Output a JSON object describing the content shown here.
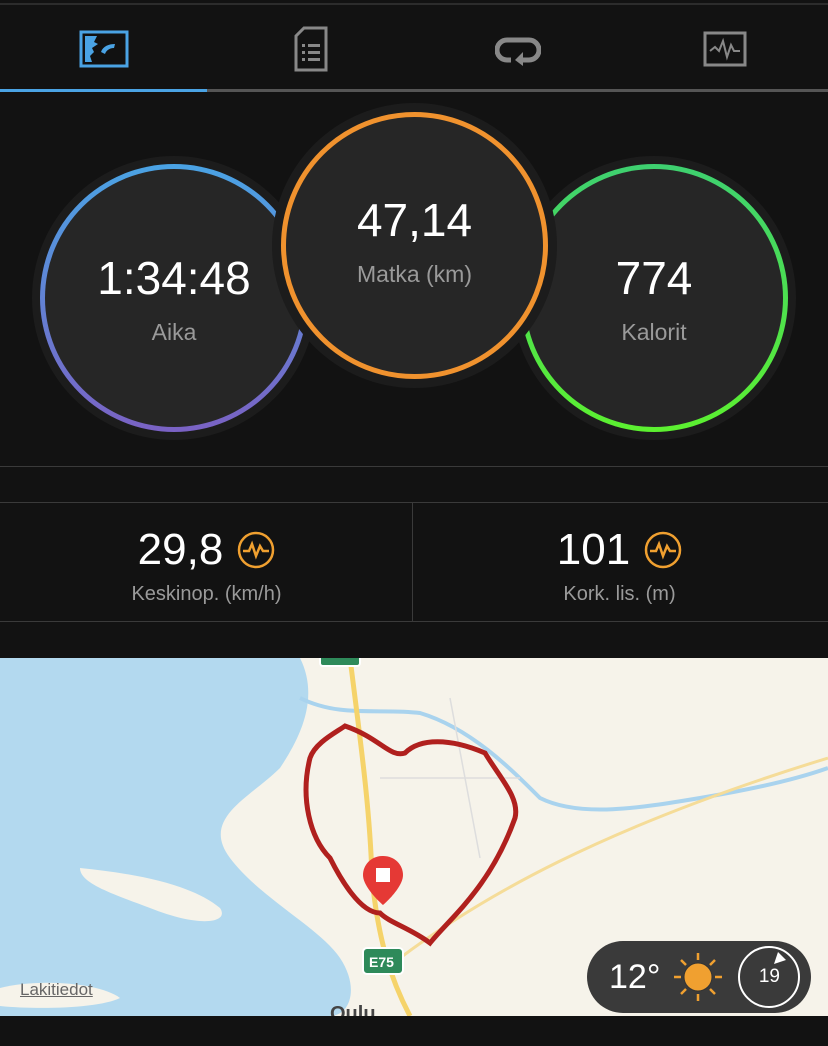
{
  "tabs": [
    {
      "icon": "overview-icon",
      "active": true
    },
    {
      "icon": "details-icon"
    },
    {
      "icon": "laps-icon"
    },
    {
      "icon": "charts-icon"
    }
  ],
  "metrics": {
    "time": {
      "value": "1:34:48",
      "label": "Aika"
    },
    "distance": {
      "value": "47,14",
      "label": "Matka (km)"
    },
    "calories": {
      "value": "774",
      "label": "Kalorit"
    }
  },
  "stats": [
    {
      "value": "29,8",
      "label": "Keskinop. (km/h)",
      "icon": "chart-pulse-icon"
    },
    {
      "value": "101",
      "label": "Kork. lis. (m)",
      "icon": "chart-pulse-icon"
    }
  ],
  "map": {
    "legal_label": "Lakitiedot",
    "road_label": "E75",
    "city_label": "Oulu"
  },
  "weather": {
    "temperature": "12°",
    "icon": "sun-icon",
    "wind": "19"
  },
  "colors": {
    "accent": "#4aa3e4",
    "distance": "#f0922e",
    "calories": "#4ee04a",
    "route": "#b0201e"
  }
}
